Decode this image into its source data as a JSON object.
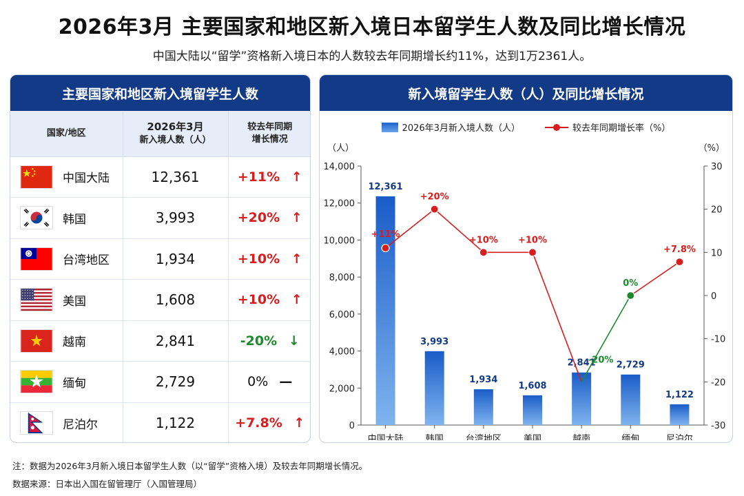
{
  "title": "2026年3月 主要国家和地区新入境日本留学生人数及同比增长情况",
  "subtitle": "中国大陆以“留学”资格新入境日本的人数较去年同期增长约11%，达到1万2361人。",
  "table": {
    "heading": "主要国家和地区新入境留学生人数",
    "col_country": "国家/地区",
    "col_count_line1": "2026年3月",
    "col_count_line2": "新入境人数（人）",
    "col_change_line1": "较去年同期",
    "col_change_line2": "增长情况",
    "rows": [
      {
        "country": "中国大陆",
        "count": "12,361",
        "change": "+11%",
        "dir": "up",
        "arrow": "↑"
      },
      {
        "country": "韩国",
        "count": "3,993",
        "change": "+20%",
        "dir": "up",
        "arrow": "↑"
      },
      {
        "country": "台湾地区",
        "count": "1,934",
        "change": "+10%",
        "dir": "up",
        "arrow": "↑"
      },
      {
        "country": "美国",
        "count": "1,608",
        "change": "+10%",
        "dir": "up",
        "arrow": "↑"
      },
      {
        "country": "越南",
        "count": "2,841",
        "change": "-20%",
        "dir": "down",
        "arrow": "↓"
      },
      {
        "country": "缅甸",
        "count": "2,729",
        "change": "0%",
        "dir": "flat",
        "arrow": "—"
      },
      {
        "country": "尼泊尔",
        "count": "1,122",
        "change": "+7.8%",
        "dir": "up",
        "arrow": "↑"
      }
    ],
    "flags": [
      "flag-china-icon",
      "flag-korea-icon",
      "flag-taiwan-icon",
      "flag-usa-icon",
      "flag-vietnam-icon",
      "flag-myanmar-icon",
      "flag-nepal-icon"
    ]
  },
  "chart_heading": "新入境留学生人数（人）及同比增长情况",
  "chart_data": {
    "type": "bar",
    "categories": [
      "中国大陆",
      "韩国",
      "台湾地区",
      "美国",
      "越南",
      "缅甸",
      "尼泊尔"
    ],
    "series": [
      {
        "name": "2026年3月新入境人数（人）",
        "type": "bar",
        "axis": "left",
        "values": [
          12361,
          3993,
          1934,
          1608,
          2841,
          2729,
          1122
        ],
        "color": "#1e63cc"
      },
      {
        "name": "较去年同期增长率（%）",
        "type": "line",
        "axis": "right",
        "values": [
          11,
          20,
          10,
          10,
          -20,
          0,
          7.8
        ],
        "color": "#d71d1d",
        "down_color": "#1d8a2e"
      }
    ],
    "bar_labels": [
      "12,361",
      "3,993",
      "1,934",
      "1,608",
      "2,841",
      "2,729",
      "1,122"
    ],
    "line_labels": [
      "+11%",
      "+20%",
      "+10%",
      "+10%",
      "-20%",
      "0%",
      "+7.8%"
    ],
    "ylabel_left": "（人）",
    "ylabel_right": "（%）",
    "ylim_left": [
      0,
      14000
    ],
    "yticks_left": [
      "0",
      "2,000",
      "4,000",
      "6,000",
      "8,000",
      "10,000",
      "12,000",
      "14,000"
    ],
    "ylim_right": [
      -30,
      30
    ],
    "yticks_right": [
      "-30",
      "-20",
      "-10",
      "0",
      "10",
      "20",
      "30"
    ],
    "grid": false,
    "legend_position": "top"
  },
  "footer": {
    "note": "注：数据为2026年3月新入境日本留学生人数（以“留学”资格入境）及较去年同期增长情况。",
    "source": "数据来源：日本出入国在留管理厅（入国管理局）"
  }
}
